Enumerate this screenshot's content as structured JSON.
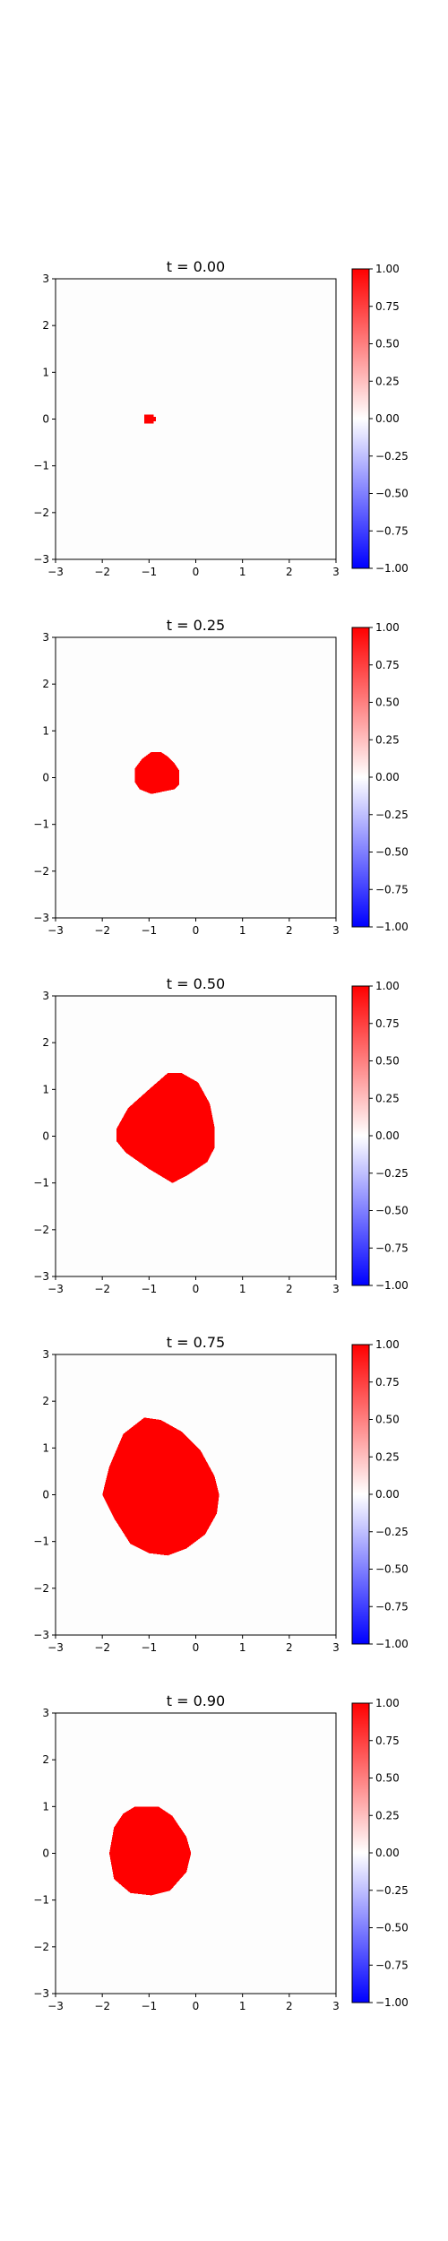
{
  "chart_data": [
    {
      "type": "heatmap",
      "title": "t = 0.00",
      "xlim": [
        -3,
        3
      ],
      "ylim": [
        -3,
        3
      ],
      "x_ticks": [
        "−3",
        "−2",
        "−1",
        "0",
        "1",
        "2",
        "3"
      ],
      "y_ticks": [
        "−3",
        "−2",
        "−1",
        "0",
        "1",
        "2",
        "3"
      ],
      "colorbar": {
        "range": [
          -1,
          1
        ],
        "ticks": [
          "−1.00",
          "−0.75",
          "−0.50",
          "−0.25",
          "0.00",
          "0.25",
          "0.50",
          "0.75",
          "1.00"
        ]
      },
      "regions": [
        {
          "value": 1.0,
          "boundary": [
            [
              -1.1,
              0.1
            ],
            [
              -0.9,
              0.1
            ],
            [
              -0.9,
              0.05
            ],
            [
              -0.85,
              0.05
            ],
            [
              -0.85,
              -0.05
            ],
            [
              -0.9,
              -0.05
            ],
            [
              -0.9,
              -0.1
            ],
            [
              -1.1,
              -0.1
            ]
          ]
        }
      ]
    },
    {
      "type": "heatmap",
      "title": "t = 0.25",
      "xlim": [
        -3,
        3
      ],
      "ylim": [
        -3,
        3
      ],
      "x_ticks": [
        "−3",
        "−2",
        "−1",
        "0",
        "1",
        "2",
        "3"
      ],
      "y_ticks": [
        "−3",
        "−2",
        "−1",
        "0",
        "1",
        "2",
        "3"
      ],
      "colorbar": {
        "range": [
          -1,
          1
        ],
        "ticks": [
          "−1.00",
          "−0.75",
          "−0.50",
          "−0.25",
          "0.00",
          "0.25",
          "0.50",
          "0.75",
          "1.00"
        ]
      },
      "regions": [
        {
          "value": 1.0,
          "boundary": [
            [
              -0.95,
              0.55
            ],
            [
              -0.75,
              0.55
            ],
            [
              -0.6,
              0.45
            ],
            [
              -0.45,
              0.3
            ],
            [
              -0.35,
              0.15
            ],
            [
              -0.35,
              -0.15
            ],
            [
              -0.45,
              -0.25
            ],
            [
              -0.7,
              -0.3
            ],
            [
              -0.95,
              -0.35
            ],
            [
              -1.2,
              -0.25
            ],
            [
              -1.3,
              -0.1
            ],
            [
              -1.3,
              0.2
            ],
            [
              -1.15,
              0.4
            ]
          ]
        }
      ]
    },
    {
      "type": "heatmap",
      "title": "t = 0.50",
      "xlim": [
        -3,
        3
      ],
      "ylim": [
        -3,
        3
      ],
      "x_ticks": [
        "−3",
        "−2",
        "−1",
        "0",
        "1",
        "2",
        "3"
      ],
      "y_ticks": [
        "−3",
        "−2",
        "−1",
        "0",
        "1",
        "2",
        "3"
      ],
      "colorbar": {
        "range": [
          -1,
          1
        ],
        "ticks": [
          "−1.00",
          "−0.75",
          "−0.50",
          "−0.25",
          "0.00",
          "0.25",
          "0.50",
          "0.75",
          "1.00"
        ]
      },
      "regions": [
        {
          "value": 1.0,
          "boundary": [
            [
              -0.6,
              1.35
            ],
            [
              -0.3,
              1.35
            ],
            [
              0.05,
              1.15
            ],
            [
              0.3,
              0.7
            ],
            [
              0.4,
              0.2
            ],
            [
              0.4,
              -0.25
            ],
            [
              0.25,
              -0.55
            ],
            [
              -0.2,
              -0.85
            ],
            [
              -0.5,
              -1.0
            ],
            [
              -1.0,
              -0.7
            ],
            [
              -1.5,
              -0.35
            ],
            [
              -1.7,
              -0.1
            ],
            [
              -1.7,
              0.15
            ],
            [
              -1.45,
              0.6
            ],
            [
              -1.0,
              1.0
            ]
          ]
        }
      ]
    },
    {
      "type": "heatmap",
      "title": "t = 0.75",
      "xlim": [
        -3,
        3
      ],
      "ylim": [
        -3,
        3
      ],
      "x_ticks": [
        "−3",
        "−2",
        "−1",
        "0",
        "1",
        "2",
        "3"
      ],
      "y_ticks": [
        "−3",
        "−2",
        "−1",
        "0",
        "1",
        "2",
        "3"
      ],
      "colorbar": {
        "range": [
          -1,
          1
        ],
        "ticks": [
          "−1.00",
          "−0.75",
          "−0.50",
          "−0.25",
          "0.00",
          "0.25",
          "0.50",
          "0.75",
          "1.00"
        ]
      },
      "regions": [
        {
          "value": 1.0,
          "boundary": [
            [
              -1.1,
              1.65
            ],
            [
              -0.75,
              1.6
            ],
            [
              -0.3,
              1.35
            ],
            [
              0.1,
              0.95
            ],
            [
              0.4,
              0.4
            ],
            [
              0.5,
              0.0
            ],
            [
              0.45,
              -0.4
            ],
            [
              0.2,
              -0.85
            ],
            [
              -0.2,
              -1.15
            ],
            [
              -0.6,
              -1.3
            ],
            [
              -1.0,
              -1.25
            ],
            [
              -1.4,
              -1.05
            ],
            [
              -1.75,
              -0.5
            ],
            [
              -2.0,
              0.0
            ],
            [
              -1.85,
              0.6
            ],
            [
              -1.55,
              1.3
            ]
          ]
        }
      ]
    },
    {
      "type": "heatmap",
      "title": "t = 0.90",
      "xlim": [
        -3,
        3
      ],
      "ylim": [
        -3,
        3
      ],
      "x_ticks": [
        "−3",
        "−2",
        "−1",
        "0",
        "1",
        "2",
        "3"
      ],
      "y_ticks": [
        "−3",
        "−2",
        "−1",
        "0",
        "1",
        "2",
        "3"
      ],
      "colorbar": {
        "range": [
          -1,
          1
        ],
        "ticks": [
          "−1.00",
          "−0.75",
          "−0.50",
          "−0.25",
          "0.00",
          "0.25",
          "0.50",
          "0.75",
          "1.00"
        ]
      },
      "regions": [
        {
          "value": 1.0,
          "boundary": [
            [
              -1.3,
              1.0
            ],
            [
              -0.8,
              1.0
            ],
            [
              -0.5,
              0.8
            ],
            [
              -0.2,
              0.35
            ],
            [
              -0.1,
              0.0
            ],
            [
              -0.2,
              -0.4
            ],
            [
              -0.55,
              -0.8
            ],
            [
              -0.95,
              -0.9
            ],
            [
              -1.4,
              -0.85
            ],
            [
              -1.75,
              -0.55
            ],
            [
              -1.85,
              0.0
            ],
            [
              -1.75,
              0.55
            ],
            [
              -1.55,
              0.85
            ]
          ]
        }
      ]
    }
  ]
}
